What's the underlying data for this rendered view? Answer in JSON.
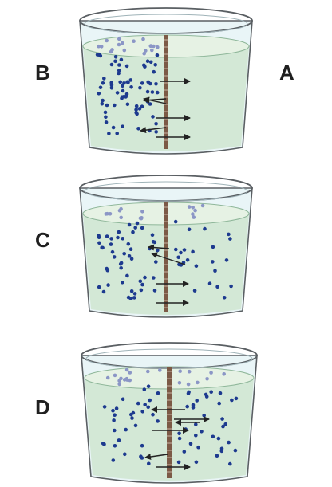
{
  "labels": {
    "top_left": "B",
    "top_right": "A",
    "middle": "C",
    "bottom": "D"
  },
  "colors": {
    "water": "#d3e8d6",
    "water_surface": "#e6f2e4",
    "glass_rim": "#5a5f63",
    "glass_fill": "#e9f5f7",
    "membrane": "#7c5a46",
    "particle": "#1d3a8f",
    "particle_light": "#8b96c6",
    "arrow": "#222222"
  },
  "beakers": [
    {
      "id": "diffusion-initial",
      "membrane": "semi-permeable",
      "particles_left": "many",
      "particles_right": "none",
      "net_flow": "left-to-right"
    },
    {
      "id": "diffusion-intermediate",
      "membrane": "semi-permeable",
      "particles_left": "more",
      "particles_right": "fewer",
      "net_flow": "left-to-right"
    },
    {
      "id": "diffusion-equilibrium",
      "membrane": "semi-permeable",
      "particles_left": "equal",
      "particles_right": "equal",
      "net_flow": "both-directions"
    }
  ]
}
